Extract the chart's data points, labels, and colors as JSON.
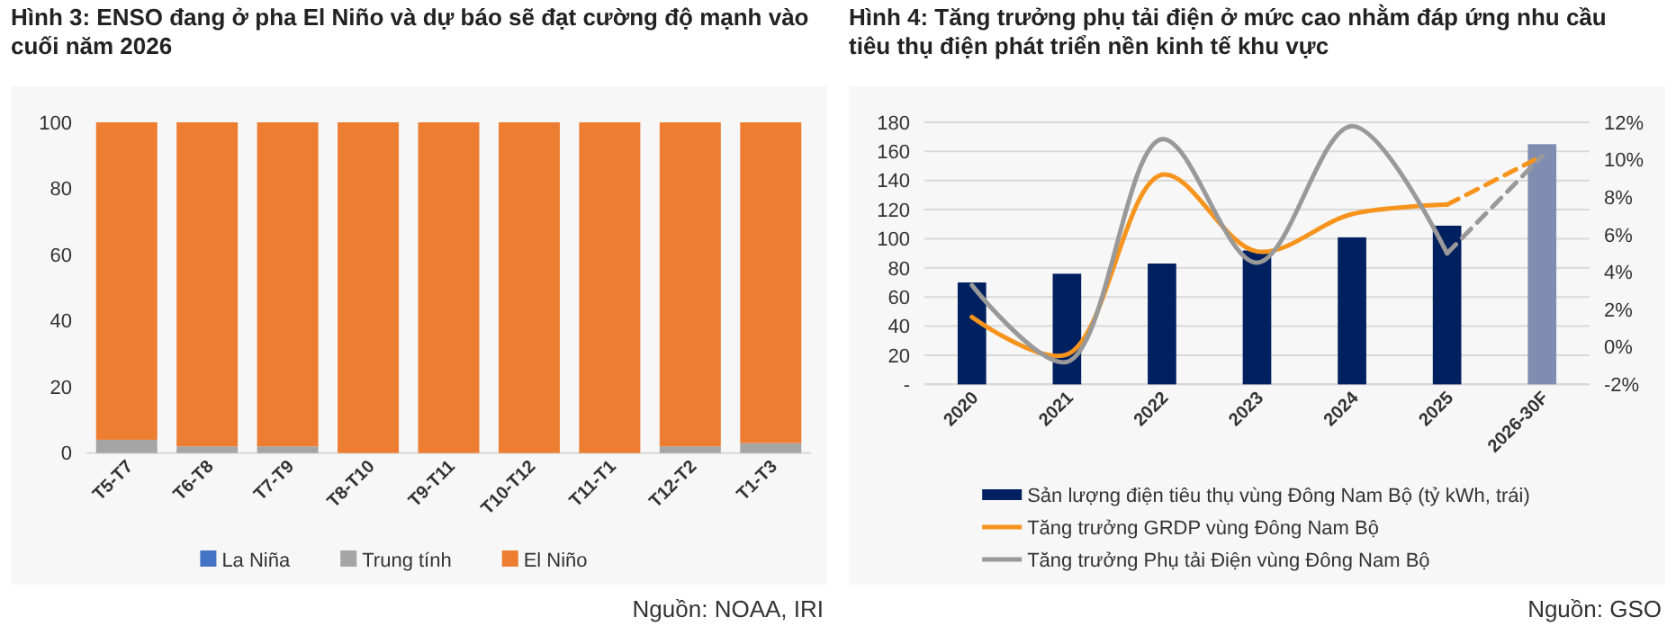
{
  "chart_data": [
    {
      "type": "bar",
      "title": "Hình 3: ENSO đang ở pha El Niño và dự báo sẽ đạt cường độ mạnh vào cuối năm 2026",
      "categories": [
        "T5-T7",
        "T6-T8",
        "T7-T9",
        "T8-T10",
        "T9-T11",
        "T10-T12",
        "T11-T1",
        "T12-T2",
        "T1-T3"
      ],
      "stacked": true,
      "series": [
        {
          "name": "La Niña",
          "color": "#4472c4",
          "values": [
            0,
            0,
            0,
            0,
            0,
            0,
            0,
            0,
            0
          ]
        },
        {
          "name": "Trung tính",
          "color": "#a5a5a5",
          "values": [
            4,
            2,
            2,
            0,
            0,
            0,
            0,
            2,
            3
          ]
        },
        {
          "name": "El Niño",
          "color": "#ed7d31",
          "values": [
            96,
            98,
            98,
            100,
            100,
            100,
            100,
            98,
            97
          ]
        }
      ],
      "ylim": [
        0,
        100
      ],
      "yticks": [
        0,
        20,
        40,
        60,
        80,
        100
      ],
      "legend": "bottom",
      "annotations": [
        "Nguồn: NOAA, IRI"
      ]
    },
    {
      "type": "bar",
      "title": "Hình 4: Tăng trưởng phụ tải điện ở mức cao nhằm đáp ứng nhu cầu tiêu thụ điện phát triển nền kinh tế khu vực",
      "categories": [
        "2020",
        "2021",
        "2022",
        "2023",
        "2024",
        "2025",
        "2026-30F"
      ],
      "series": [
        {
          "name": "Sản lượng điện tiêu thụ vùng Đông Nam Bộ (tỷ kWh, trái)",
          "type": "bar",
          "color": "#002060",
          "colors": [
            "#002060",
            "#002060",
            "#002060",
            "#002060",
            "#002060",
            "#002060",
            "#7f8db0"
          ],
          "values": [
            70,
            76,
            83,
            92,
            101,
            109,
            165
          ]
        },
        {
          "name": "Tăng trưởng GRDP vùng Đông Nam Bộ",
          "type": "line",
          "axis": "y2",
          "color": "#f7941d",
          "line_style": "solid",
          "values": [
            1.6,
            -0.4,
            9.2,
            5.1,
            7.1,
            7.6,
            null
          ]
        },
        {
          "name": "Tăng trưởng Phụ tải Điện vùng Đông Nam Bộ",
          "type": "line",
          "axis": "y2",
          "color": "#999999",
          "line_style": "solid",
          "values": [
            3.3,
            -0.8,
            11.1,
            4.5,
            11.8,
            5.0,
            null
          ]
        },
        {
          "type": "line",
          "axis": "y2",
          "color": "#f7941d",
          "line_style": "dashed",
          "values": [
            null,
            null,
            null,
            null,
            null,
            7.6,
            10.2
          ]
        },
        {
          "type": "line",
          "axis": "y2",
          "color": "#999999",
          "line_style": "dashed",
          "values": [
            null,
            null,
            null,
            null,
            null,
            5.0,
            10.2
          ]
        }
      ],
      "ylim": [
        0,
        180
      ],
      "yticks": [
        {
          "value": 0,
          "label": "-"
        },
        20,
        40,
        60,
        80,
        100,
        120,
        140,
        160,
        180
      ],
      "y2lim": [
        -2,
        12
      ],
      "y2ticks": [
        {
          "value": -2,
          "label": "-2%"
        },
        {
          "value": 0,
          "label": "0%"
        },
        {
          "value": 2,
          "label": "2%"
        },
        {
          "value": 4,
          "label": "4%"
        },
        {
          "value": 6,
          "label": "6%"
        },
        {
          "value": 8,
          "label": "8%"
        },
        {
          "value": 10,
          "label": "10%"
        },
        {
          "value": 12,
          "label": "12%"
        }
      ],
      "grid": "y",
      "legend": "bottom",
      "annotations": [
        "Nguồn: GSO"
      ]
    }
  ]
}
